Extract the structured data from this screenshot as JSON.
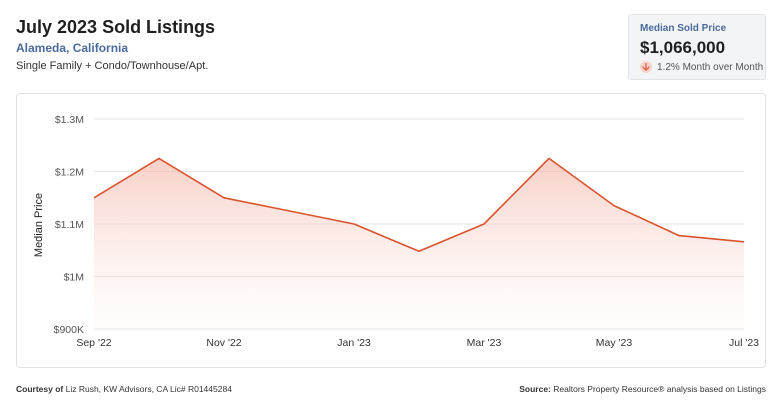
{
  "header": {
    "title": "July 2023 Sold Listings",
    "location": "Alameda, California",
    "property_types": "Single Family + Condo/Townhouse/Apt."
  },
  "kpi": {
    "label": "Median Sold Price",
    "value": "$1,066,000",
    "change": "1.2% Month over Month",
    "change_icon": "arrow-down-icon",
    "change_color": "#e05c44"
  },
  "footer": {
    "courtesy_label": "Courtesy of",
    "courtesy_text": "Liz Rush, KW Advisors, CA Lic# R01445284",
    "source_label": "Source:",
    "source_text": "Realtors Property Resource® analysis based on Listings"
  },
  "chart_data": {
    "type": "area",
    "title": "",
    "xlabel": "",
    "ylabel": "Median Price",
    "x": [
      "Sep '22",
      "Oct '22",
      "Nov '22",
      "Dec '22",
      "Jan '23",
      "Feb '23",
      "Mar '23",
      "Apr '23",
      "May '23",
      "Jun '23",
      "Jul '23"
    ],
    "x_tick_labels": [
      "Sep '22",
      "Nov '22",
      "Jan '23",
      "Mar '23",
      "May '23",
      "Jul '23"
    ],
    "y_tick_values": [
      900000,
      1000000,
      1100000,
      1200000,
      1300000
    ],
    "y_tick_labels": [
      "$900K",
      "$1M",
      "$1.1M",
      "$1.2M",
      "$1.3M"
    ],
    "ylim": [
      900000,
      1300000
    ],
    "grid": true,
    "series": [
      {
        "values": [
          1150000,
          1225000,
          1150000,
          1125000,
          1100000,
          1048000,
          1100000,
          1225000,
          1135000,
          1078000,
          1066000
        ],
        "color": "#d9532e"
      }
    ]
  }
}
